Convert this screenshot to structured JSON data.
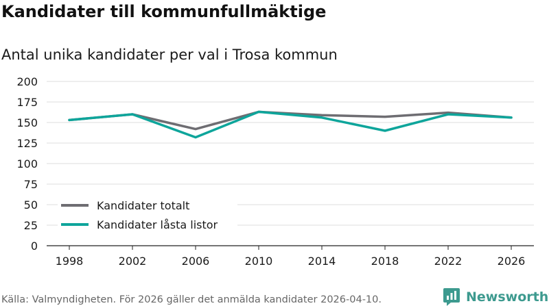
{
  "header": {
    "title": "Kandidater till kommunfullmäktige",
    "subtitle": "Antal unika kandidater per val i Trosa kommun"
  },
  "footer": {
    "source": "Källa: Valmyndigheten. För 2026 gäller det anmälda kandidater 2026-04-10.",
    "brand": "Newsworthy",
    "brand_color": "#3d9a8f"
  },
  "chart_data": {
    "type": "line",
    "title": "Kandidater till kommunfullmäktige",
    "subtitle": "Antal unika kandidater per val i Trosa kommun",
    "xlabel": "",
    "ylabel": "",
    "x": [
      "1998",
      "2002",
      "2006",
      "2010",
      "2014",
      "2018",
      "2022",
      "2026"
    ],
    "ylim": [
      0,
      200
    ],
    "yticks": [
      0,
      25,
      50,
      75,
      100,
      125,
      150,
      175,
      200
    ],
    "grid": true,
    "legend_position": "bottom-left",
    "series": [
      {
        "name": "Kandidater totalt",
        "color": "#6e6d72",
        "values": [
          153,
          160,
          142,
          163,
          159,
          157,
          162,
          156
        ]
      },
      {
        "name": "Kandidater låsta listor",
        "color": "#0ea59b",
        "values": [
          153,
          160,
          132,
          163,
          156,
          140,
          160,
          156
        ]
      }
    ]
  }
}
